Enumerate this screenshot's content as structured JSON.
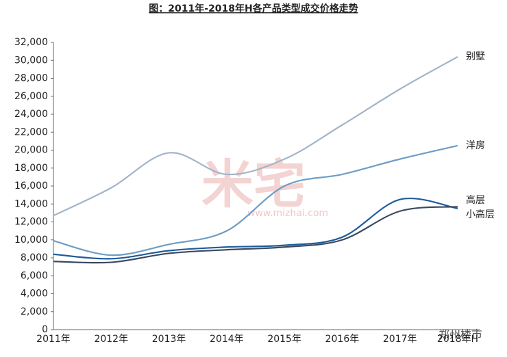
{
  "chart_data": {
    "type": "line",
    "title": "图：2011年-2018年H各产品类型成交价格走势",
    "categories": [
      "2011年",
      "2012年",
      "2013年",
      "2014年",
      "2015年",
      "2016年",
      "2017年",
      "2018年H"
    ],
    "series": [
      {
        "name": "别墅",
        "color": "#a3b4c8",
        "values": [
          12700,
          15800,
          19700,
          17300,
          19000,
          22800,
          26800,
          30400
        ]
      },
      {
        "name": "洋房",
        "color": "#6d9dc5",
        "values": [
          9900,
          8300,
          9500,
          11000,
          16000,
          17300,
          19000,
          20500
        ]
      },
      {
        "name": "高层",
        "color": "#1f5c99",
        "values": [
          8400,
          7900,
          8800,
          9200,
          9400,
          10300,
          14500,
          13500
        ]
      },
      {
        "name": "小高层",
        "color": "#3a4a63",
        "values": [
          7600,
          7500,
          8500,
          8900,
          9200,
          10000,
          13200,
          13700
        ]
      }
    ],
    "ylim": [
      0,
      32000
    ],
    "yticks": [
      0,
      {
        "value": 2000,
        "label": "2,000"
      },
      {
        "value": 4000,
        "label": "4,000"
      },
      {
        "value": 6000,
        "label": "6,000"
      },
      {
        "value": 8000,
        "label": "8,000"
      },
      {
        "value": 10000,
        "label": "10,000"
      },
      {
        "value": 12000,
        "label": "12,000"
      },
      {
        "value": 14000,
        "label": "14,000"
      },
      {
        "value": 16000,
        "label": "16,000"
      },
      {
        "value": 18000,
        "label": "18,000"
      },
      {
        "value": 20000,
        "label": "20,000"
      },
      {
        "value": 22000,
        "label": "22,000"
      },
      {
        "value": 24000,
        "label": "24,000"
      },
      {
        "value": 26000,
        "label": "26,000"
      },
      {
        "value": 28000,
        "label": "28,000"
      },
      {
        "value": 30000,
        "label": "30,000"
      },
      {
        "value": 32000,
        "label": "32,000"
      }
    ],
    "grid": false
  },
  "watermark": {
    "logo": "米宅",
    "url": "www.mizhai.com"
  },
  "footer": "郑州楼市"
}
